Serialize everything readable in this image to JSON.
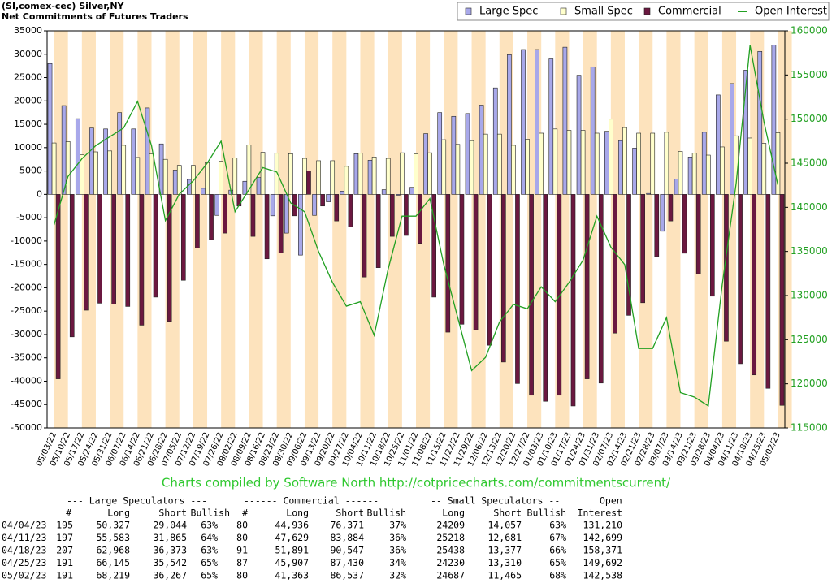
{
  "chart_data": {
    "type": "bar",
    "title": "(SI,comex-cec) Silver,NY",
    "subtitle": "Net Commitments of Futures Traders",
    "annotation": "Charts compiled by Software North  http://cotpricecharts.com/commitmentscurrent/",
    "categories": [
      "05/03/22",
      "05/10/22",
      "05/17/22",
      "05/24/22",
      "05/31/22",
      "06/07/22",
      "06/14/22",
      "06/21/22",
      "06/28/22",
      "07/05/22",
      "07/12/22",
      "07/19/22",
      "07/26/22",
      "08/02/22",
      "08/09/22",
      "08/16/22",
      "08/23/22",
      "08/30/22",
      "09/06/22",
      "09/13/22",
      "09/20/22",
      "09/27/22",
      "10/04/22",
      "10/11/22",
      "10/18/22",
      "10/25/22",
      "11/01/22",
      "11/08/22",
      "11/15/22",
      "11/22/22",
      "11/29/22",
      "12/06/22",
      "12/13/22",
      "12/20/22",
      "12/27/22",
      "01/03/23",
      "01/10/23",
      "01/17/23",
      "01/24/23",
      "01/31/23",
      "02/07/23",
      "02/14/23",
      "02/21/23",
      "02/28/23",
      "03/07/23",
      "03/14/23",
      "03/21/23",
      "03/28/23",
      "04/04/23",
      "04/11/23",
      "04/18/23",
      "04/25/23",
      "05/02/23"
    ],
    "series": [
      {
        "name": "Large Spec",
        "color": "#a8a8ea",
        "values": [
          28000,
          19000,
          16200,
          14200,
          14000,
          17500,
          14000,
          18500,
          10800,
          5200,
          3200,
          1300,
          -4500,
          900,
          2800,
          3600,
          -4600,
          -8300,
          -13000,
          -4500,
          -1600,
          700,
          8700,
          7300,
          1000,
          -200,
          1500,
          13000,
          17500,
          16700,
          17300,
          19100,
          22800,
          29900,
          31000,
          31000,
          29000,
          31500,
          25500,
          27300,
          13500,
          11500,
          9900,
          200,
          -7900,
          3300,
          8000,
          13300,
          21283,
          23718,
          26595,
          30603,
          31952
        ]
      },
      {
        "name": "Small Spec",
        "color": "#ffffcc",
        "values": [
          11000,
          11300,
          8500,
          9100,
          9300,
          10500,
          7900,
          8700,
          7500,
          6200,
          6200,
          6800,
          7100,
          7800,
          10600,
          9000,
          8800,
          8700,
          7700,
          7200,
          7200,
          6000,
          8800,
          8000,
          7700,
          8900,
          8700,
          8900,
          11700,
          10700,
          11500,
          12900,
          12900,
          10500,
          11800,
          13100,
          14000,
          13700,
          13700,
          13100,
          16100,
          14300,
          13100,
          13100,
          13300,
          9200,
          8800,
          8400,
          10152,
          12537,
          12061,
          10920,
          13222
        ]
      },
      {
        "name": "Commercial",
        "color": "#6b1840",
        "values": [
          -39500,
          -30500,
          -24800,
          -23300,
          -23500,
          -24000,
          -28000,
          -22000,
          -27200,
          -18400,
          -11500,
          -9700,
          -8300,
          -2500,
          -9000,
          -13800,
          -12500,
          -4600,
          5000,
          -2500,
          -5700,
          -7000,
          -17700,
          -15700,
          -9000,
          -8800,
          -10500,
          -22000,
          -29500,
          -27800,
          -29000,
          -32300,
          -35900,
          -40500,
          -43000,
          -44300,
          -43000,
          -45300,
          -39500,
          -40400,
          -29700,
          -25900,
          -23200,
          -13300,
          -5700,
          -12600,
          -17000,
          -21800,
          -31435,
          -36255,
          -38656,
          -41523,
          -45174
        ]
      },
      {
        "name": "Open Interest",
        "color": "#22a022",
        "type": "line",
        "axis": "y2",
        "values": [
          138000,
          143500,
          145500,
          147000,
          148000,
          149000,
          152000,
          147000,
          138500,
          141500,
          143000,
          145000,
          147500,
          139500,
          142000,
          144500,
          144000,
          140500,
          139500,
          135000,
          131500,
          128800,
          129300,
          125500,
          133000,
          139000,
          139000,
          141000,
          133500,
          127500,
          121500,
          123000,
          127000,
          129000,
          128500,
          131000,
          129300,
          131500,
          134000,
          139000,
          135500,
          133500,
          124000,
          124000,
          127500,
          119000,
          118500,
          117500,
          131210,
          142699,
          158371,
          149692,
          142538
        ]
      }
    ],
    "ylim": [
      -50000,
      35000
    ],
    "yticks": [
      -50000,
      -45000,
      -40000,
      -35000,
      -30000,
      -25000,
      -20000,
      -15000,
      -10000,
      -5000,
      0,
      5000,
      10000,
      15000,
      20000,
      25000,
      30000,
      35000
    ],
    "y2lim": [
      115000,
      160000
    ],
    "y2ticks": [
      115000,
      120000,
      125000,
      130000,
      135000,
      140000,
      145000,
      150000,
      155000,
      160000
    ],
    "legend": "top-right"
  },
  "table": {
    "groups": [
      "--- Large Speculators ---",
      "------ Commercial ------",
      "-- Small Speculators --",
      "Open"
    ],
    "header": [
      "#",
      "Long",
      "Short",
      "Bullish",
      "#",
      "Long",
      "Short",
      "Bullish",
      "Long",
      "Short",
      "Bullish",
      "Interest"
    ],
    "rows": [
      [
        "04/04/23",
        "195",
        "50,327",
        "29,044",
        "63%",
        "80",
        "44,936",
        "76,371",
        "37%",
        "24209",
        "14,057",
        "63%",
        "131,210"
      ],
      [
        "04/11/23",
        "197",
        "55,583",
        "31,865",
        "64%",
        "80",
        "47,629",
        "83,884",
        "36%",
        "25218",
        "12,681",
        "67%",
        "142,699"
      ],
      [
        "04/18/23",
        "207",
        "62,968",
        "36,373",
        "63%",
        "91",
        "51,891",
        "90,547",
        "36%",
        "25438",
        "13,377",
        "66%",
        "158,371"
      ],
      [
        "04/25/23",
        "191",
        "66,145",
        "35,542",
        "65%",
        "87",
        "45,907",
        "87,430",
        "34%",
        "24230",
        "13,310",
        "65%",
        "149,692"
      ],
      [
        "05/02/23",
        "191",
        "68,219",
        "36,267",
        "65%",
        "80",
        "41,363",
        "86,537",
        "32%",
        "24687",
        "11,465",
        "68%",
        "142,538"
      ]
    ]
  }
}
